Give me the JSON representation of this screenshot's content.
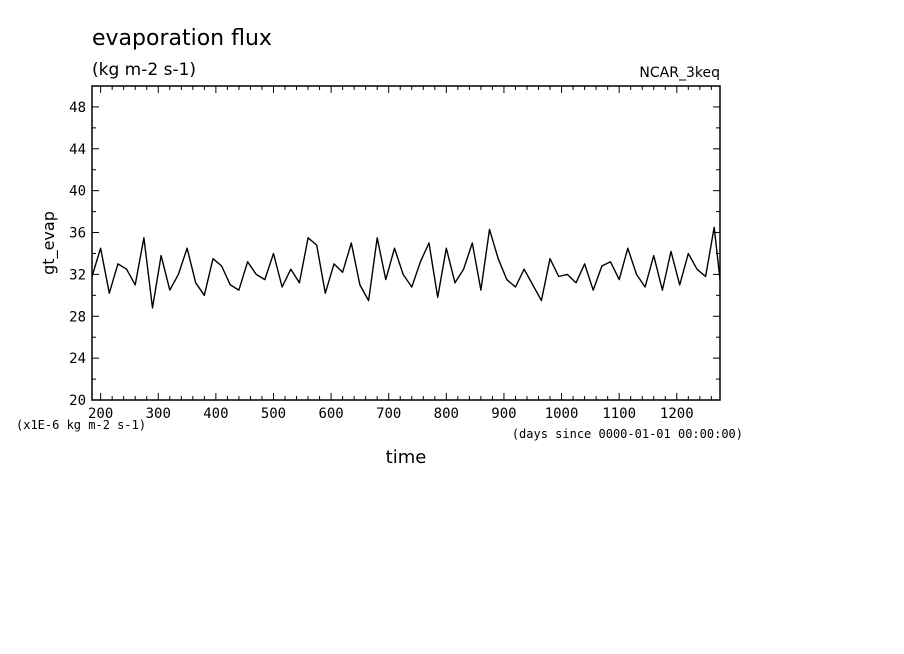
{
  "chart_data": {
    "type": "line",
    "title": "evaporation flux",
    "units": "(kg m-2 s-1)",
    "source_label": "NCAR_3keq",
    "ylabel": "gt_evap",
    "xlabel": "time",
    "y_scale_note": "(x1E-6 kg m-2 s-1)",
    "x_units_note": "(days since 0000-01-01 00:00:00)",
    "xlim": [
      185,
      1275
    ],
    "ylim": [
      20,
      50
    ],
    "x_ticks": [
      200,
      300,
      400,
      500,
      600,
      700,
      800,
      900,
      1000,
      1100,
      1200
    ],
    "y_ticks": [
      20,
      24,
      28,
      32,
      36,
      40,
      44,
      48
    ],
    "grid": false,
    "series": [
      {
        "x": [
          185,
          200,
          215,
          230,
          245,
          260,
          275,
          290,
          305,
          320,
          335,
          350,
          365,
          380,
          395,
          410,
          425,
          440,
          455,
          470,
          485,
          500,
          515,
          530,
          545,
          560,
          575,
          590,
          605,
          620,
          635,
          650,
          665,
          680,
          695,
          710,
          725,
          740,
          755,
          770,
          785,
          800,
          815,
          830,
          845,
          860,
          875,
          890,
          905,
          920,
          935,
          950,
          965,
          980,
          995,
          1010,
          1025,
          1040,
          1055,
          1070,
          1085,
          1100,
          1115,
          1130,
          1145,
          1160,
          1175,
          1190,
          1205,
          1220,
          1235,
          1250,
          1265,
          1275
        ],
        "values": [
          31.8,
          34.5,
          30.2,
          33.0,
          32.5,
          31.0,
          35.5,
          28.8,
          33.8,
          30.5,
          32.0,
          34.5,
          31.2,
          30.0,
          33.5,
          32.8,
          31.0,
          30.5,
          33.2,
          32.0,
          31.5,
          34.0,
          30.8,
          32.5,
          31.2,
          35.5,
          34.8,
          30.2,
          33.0,
          32.2,
          35.0,
          31.0,
          29.5,
          35.5,
          31.5,
          34.5,
          32.0,
          30.8,
          33.2,
          35.0,
          29.8,
          34.5,
          31.2,
          32.5,
          35.0,
          30.5,
          36.3,
          33.5,
          31.5,
          30.8,
          32.5,
          31.0,
          29.5,
          33.5,
          31.8,
          32.0,
          31.2,
          33.0,
          30.5,
          32.8,
          33.2,
          31.5,
          34.5,
          32.0,
          30.8,
          33.8,
          30.5,
          34.2,
          31.0,
          34.0,
          32.5,
          31.8,
          36.5,
          31.5
        ]
      }
    ]
  }
}
